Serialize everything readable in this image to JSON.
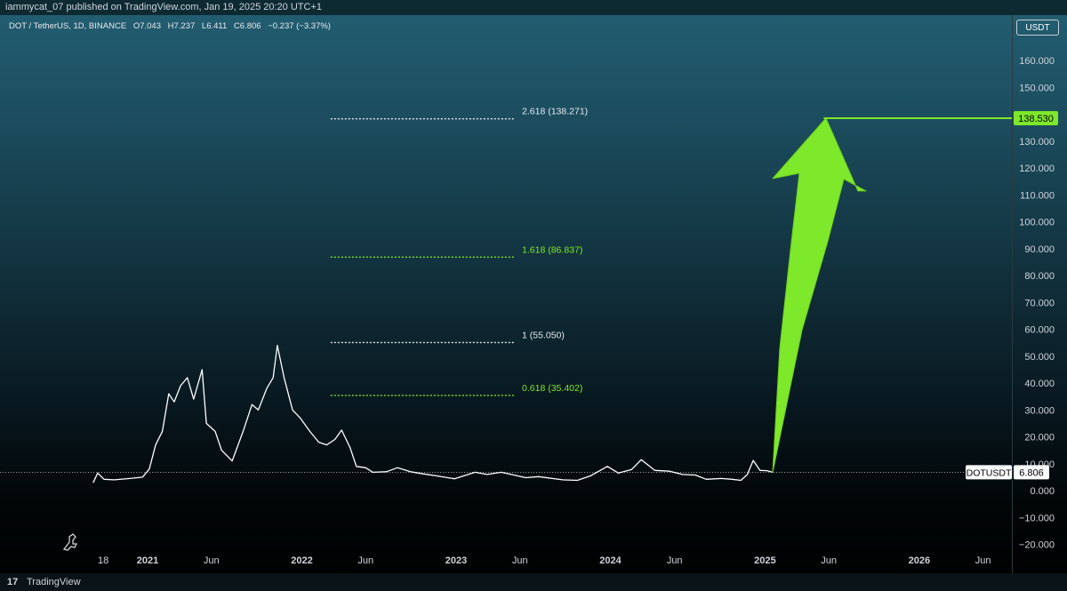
{
  "header": {
    "published_line": "iammycat_07 published on TradingView.com, Jan 19, 2025 20:20 UTC+1",
    "symbol_line": "DOT / TetherUS, 1D, BINANCE",
    "open": "O7.043",
    "high": "H7.237",
    "low": "L6.411",
    "close": "C6.806",
    "change": "−0.237 (−3.37%)"
  },
  "price_axis": {
    "unit": "USDT",
    "current_symbol": "DOTUSDT",
    "current_price": "6.806",
    "target_price": "138.530"
  },
  "footer": {
    "brand": "TradingView",
    "logo_icon": "tradingview-logo-icon"
  },
  "colors": {
    "accent_green": "#7ee82a",
    "price_line": "#ffffff",
    "fib_white": "#e6e9ee"
  },
  "chart_data": {
    "type": "line",
    "title": "DOT / TetherUS, 1D, BINANCE",
    "xlabel": "",
    "ylabel": "",
    "x_ticks": [
      "18",
      "2021",
      "Jun",
      "2022",
      "Jun",
      "2023",
      "Jun",
      "2024",
      "Jun",
      "2025",
      "Jun",
      "2026",
      "Jun"
    ],
    "x_tick_dates": [
      "2020-09-18",
      "2021-01-01",
      "2021-06-01",
      "2022-01-01",
      "2022-06-01",
      "2023-01-01",
      "2023-06-01",
      "2024-01-01",
      "2024-06-01",
      "2025-01-01",
      "2025-06-01",
      "2026-01-01",
      "2026-06-01"
    ],
    "y_ticks": [
      -20,
      -10,
      0,
      10,
      20,
      30,
      40,
      50,
      60,
      70,
      80,
      90,
      100,
      110,
      120,
      130,
      140,
      150,
      160
    ],
    "ylim": [
      -23,
      172
    ],
    "grid": false,
    "series": [
      {
        "name": "DOTUSDT",
        "points": [
          [
            "2020-08-25",
            2.9
          ],
          [
            "2020-09-05",
            6.5
          ],
          [
            "2020-09-20",
            4.2
          ],
          [
            "2020-10-15",
            4.0
          ],
          [
            "2020-11-20",
            4.5
          ],
          [
            "2020-12-20",
            5.0
          ],
          [
            "2021-01-05",
            8.0
          ],
          [
            "2021-01-20",
            17.0
          ],
          [
            "2021-02-05",
            22.0
          ],
          [
            "2021-02-20",
            36.0
          ],
          [
            "2021-03-05",
            33.0
          ],
          [
            "2021-03-20",
            39.0
          ],
          [
            "2021-04-05",
            42.0
          ],
          [
            "2021-04-20",
            34.0
          ],
          [
            "2021-05-10",
            45.0
          ],
          [
            "2021-05-20",
            25.0
          ],
          [
            "2021-06-10",
            22.0
          ],
          [
            "2021-06-25",
            15.0
          ],
          [
            "2021-07-20",
            11.0
          ],
          [
            "2021-08-15",
            22.0
          ],
          [
            "2021-09-05",
            32.0
          ],
          [
            "2021-09-20",
            30.0
          ],
          [
            "2021-10-10",
            38.0
          ],
          [
            "2021-10-25",
            42.0
          ],
          [
            "2021-11-04",
            54.0
          ],
          [
            "2021-11-20",
            42.0
          ],
          [
            "2021-12-10",
            30.0
          ],
          [
            "2021-12-28",
            27.0
          ],
          [
            "2022-01-20",
            22.0
          ],
          [
            "2022-02-10",
            18.0
          ],
          [
            "2022-03-01",
            17.0
          ],
          [
            "2022-03-20",
            19.0
          ],
          [
            "2022-04-05",
            22.5
          ],
          [
            "2022-04-25",
            16.0
          ],
          [
            "2022-05-10",
            9.0
          ],
          [
            "2022-06-01",
            8.5
          ],
          [
            "2022-06-18",
            6.8
          ],
          [
            "2022-07-20",
            7.0
          ],
          [
            "2022-08-15",
            8.5
          ],
          [
            "2022-09-15",
            7.0
          ],
          [
            "2022-10-15",
            6.2
          ],
          [
            "2022-11-15",
            5.5
          ],
          [
            "2022-12-28",
            4.4
          ],
          [
            "2023-02-15",
            6.8
          ],
          [
            "2023-03-15",
            6.0
          ],
          [
            "2023-04-18",
            6.8
          ],
          [
            "2023-06-15",
            4.8
          ],
          [
            "2023-07-15",
            5.2
          ],
          [
            "2023-09-10",
            4.0
          ],
          [
            "2023-10-15",
            3.8
          ],
          [
            "2023-11-15",
            5.5
          ],
          [
            "2023-12-25",
            9.0
          ],
          [
            "2024-01-20",
            6.5
          ],
          [
            "2024-02-20",
            7.8
          ],
          [
            "2024-03-14",
            11.5
          ],
          [
            "2024-04-15",
            7.5
          ],
          [
            "2024-05-20",
            7.2
          ],
          [
            "2024-06-20",
            6.0
          ],
          [
            "2024-07-20",
            5.8
          ],
          [
            "2024-08-15",
            4.2
          ],
          [
            "2024-09-20",
            4.5
          ],
          [
            "2024-10-15",
            4.2
          ],
          [
            "2024-11-05",
            3.8
          ],
          [
            "2024-11-20",
            6.0
          ],
          [
            "2024-12-04",
            11.2
          ],
          [
            "2024-12-20",
            7.5
          ],
          [
            "2025-01-05",
            7.4
          ],
          [
            "2025-01-19",
            6.806
          ]
        ]
      }
    ],
    "fib_levels": [
      {
        "label": "2.618 (138.271)",
        "value": 138.271,
        "color": "#e6e9ee"
      },
      {
        "label": "1.618 (86.837)",
        "value": 86.837,
        "color": "#7ee82a"
      },
      {
        "label": "1 (55.050)",
        "value": 55.05,
        "color": "#e6e9ee"
      },
      {
        "label": "0.618 (35.402)",
        "value": 35.402,
        "color": "#7ee82a"
      }
    ],
    "fib_start": "2022-03-10",
    "fib_end": "2023-05-20",
    "target_line": {
      "value": 138.53,
      "start": "2025-05-20"
    },
    "arrow": {
      "from_date": "2025-01-19",
      "from_value": 6.806,
      "to_date": "2025-05-25",
      "to_value": 138.53
    },
    "current_line": {
      "value": 6.806
    }
  }
}
